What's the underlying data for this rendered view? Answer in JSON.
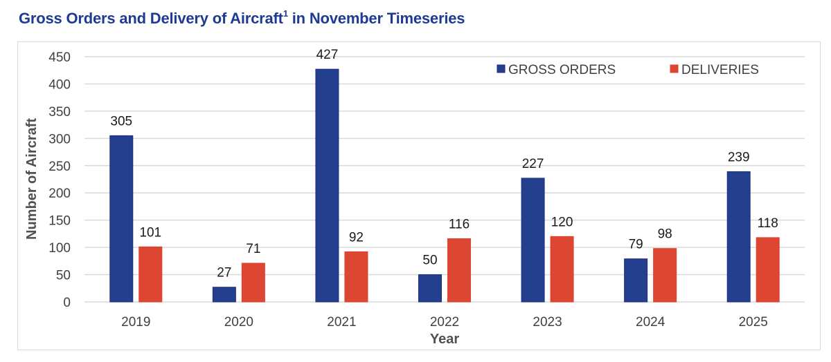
{
  "chart_data": {
    "type": "bar",
    "title": "Gross Orders and Delivery of Aircraft",
    "title_superscript": "1",
    "title_suffix": "in November Timeseries",
    "xlabel": "Year",
    "ylabel": "Number of Aircraft",
    "ylim": [
      0,
      450
    ],
    "yticks": [
      0,
      50,
      100,
      150,
      200,
      250,
      300,
      350,
      400,
      450
    ],
    "grid": true,
    "legend_position": "top-right",
    "categories": [
      "2019",
      "2020",
      "2021",
      "2022",
      "2023",
      "2024",
      "2025"
    ],
    "series": [
      {
        "name": "GROSS ORDERS",
        "color": "#253f8f",
        "values": [
          305,
          27,
          427,
          50,
          227,
          79,
          239
        ]
      },
      {
        "name": "DELIVERIES",
        "color": "#dd4633",
        "values": [
          101,
          71,
          92,
          116,
          120,
          98,
          118
        ]
      }
    ]
  }
}
